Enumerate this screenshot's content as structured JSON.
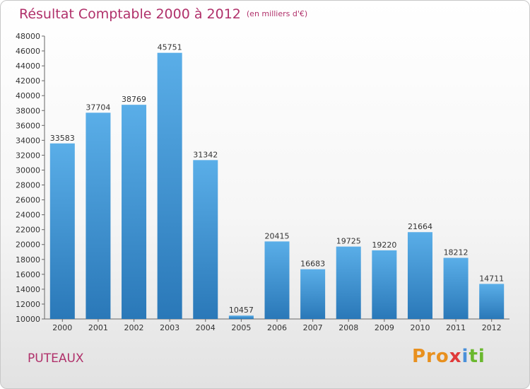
{
  "header": {
    "title": "Résultat Comptable 2000 à 2012",
    "subtitle": "(en milliers d'€)"
  },
  "footer": {
    "place": "PUTEAUX",
    "logo": "Proxiti"
  },
  "colors": {
    "title": "#b0306a",
    "bar_top": "#5aaee8",
    "bar_bottom": "#2a78b8"
  },
  "chart_data": {
    "type": "bar",
    "title": "Résultat Comptable 2000 à 2012",
    "subtitle": "(en milliers d'€)",
    "categories": [
      "2000",
      "2001",
      "2002",
      "2003",
      "2004",
      "2005",
      "2006",
      "2007",
      "2008",
      "2009",
      "2010",
      "2011",
      "2012"
    ],
    "values": [
      33583,
      37704,
      38769,
      45751,
      31342,
      10457,
      20415,
      16683,
      19725,
      19220,
      21664,
      18212,
      14711
    ],
    "ylim": [
      10000,
      48000
    ],
    "yticks": [
      10000,
      12000,
      14000,
      16000,
      18000,
      20000,
      22000,
      24000,
      26000,
      28000,
      30000,
      32000,
      34000,
      36000,
      38000,
      40000,
      42000,
      44000,
      46000,
      48000
    ],
    "xlabel": "",
    "ylabel": "",
    "grid": false,
    "data_labels": true
  }
}
